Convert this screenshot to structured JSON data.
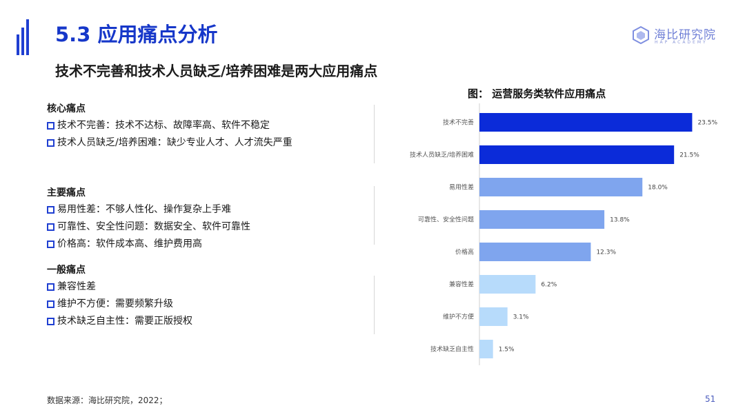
{
  "header": {
    "title": "5.3 应用痛点分析",
    "subtitle": "技术不完善和技术人员缺乏/培养困难是两大应用痛点"
  },
  "logo": {
    "name": "海比研究院",
    "sub": "HAP ACADEMY"
  },
  "pain_groups": [
    {
      "title": "核心痛点",
      "items": [
        "技术不完善：技术不达标、故障率高、软件不稳定",
        "技术人员缺乏/培养困难：缺少专业人才、人才流失严重"
      ]
    },
    {
      "title": "主要痛点",
      "items": [
        "易用性差：不够人性化、操作复杂上手难",
        "可靠性、安全性问题：数据安全、软件可靠性",
        "价格高：软件成本高、维护费用高"
      ]
    },
    {
      "title": "一般痛点",
      "items": [
        "兼容性差",
        "维护不方便：需要频繁升级",
        "技术缺乏自主性：需要正版授权"
      ]
    }
  ],
  "chart_data": {
    "type": "bar",
    "orientation": "horizontal",
    "title": "图：  运营服务类软件应用痛点",
    "categories": [
      "技术不完善",
      "技术人员缺乏/培养困难",
      "易用性差",
      "可靠性、安全性问题",
      "价格高",
      "兼容性差",
      "维护不方便",
      "技术缺乏自主性"
    ],
    "values": [
      23.5,
      21.5,
      18.0,
      13.8,
      12.3,
      6.2,
      3.1,
      1.5
    ],
    "value_labels": [
      "23.5%",
      "21.5%",
      "18.0%",
      "13.8%",
      "12.3%",
      "6.2%",
      "3.1%",
      "1.5%"
    ],
    "bar_colors": [
      "#0b2bd9",
      "#0b2bd9",
      "#7fa5ee",
      "#7fa5ee",
      "#7fa5ee",
      "#b7dbfb",
      "#b7dbfb",
      "#b7dbfb"
    ],
    "xlim": [
      0,
      24
    ],
    "grid": false,
    "legend": "none"
  },
  "footer": {
    "source": "数据来源：海比研究院，2022；",
    "page": "51"
  },
  "colors": {
    "accent": "#1637c9",
    "bullet": "#1f3fd1"
  }
}
